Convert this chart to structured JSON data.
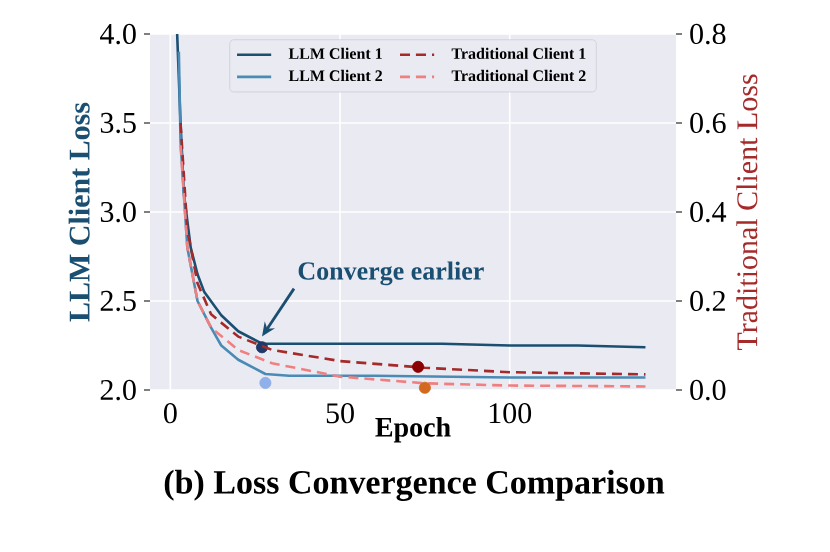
{
  "chart_data": {
    "type": "line",
    "title": "(b)  Loss Convergence Comparison",
    "xlabel": "Epoch",
    "ylabel": "LLM Client Loss",
    "y2label": "Traditional Client Loss",
    "xlim": [
      -6,
      149
    ],
    "xticks": [
      0,
      50,
      100
    ],
    "ylim": [
      2.0,
      4.0
    ],
    "yticks": [
      {
        "value": 2.0,
        "label": "2.0"
      },
      {
        "value": 2.5,
        "label": "2.5"
      },
      {
        "value": 3.0,
        "label": "3.0"
      },
      {
        "value": 3.5,
        "label": "3.5"
      },
      {
        "value": 4.0,
        "label": "4.0"
      }
    ],
    "y2lim": [
      0.0,
      0.8
    ],
    "y2ticks": [
      {
        "value": 0.0,
        "label": "0.0"
      },
      {
        "value": 0.2,
        "label": "0.2"
      },
      {
        "value": 0.4,
        "label": "0.4"
      },
      {
        "value": 0.6,
        "label": "0.6"
      },
      {
        "value": 0.8,
        "label": "0.8"
      }
    ],
    "grid": true,
    "legend": "top",
    "series": [
      {
        "name": "LLM Client 1",
        "color": "#1b4f72",
        "line_style": "solid",
        "x": [
          2,
          3,
          4,
          6,
          8,
          10,
          15,
          20,
          27,
          40,
          60,
          80,
          100,
          120,
          140
        ],
        "values": [
          4.0,
          3.5,
          3.1,
          2.8,
          2.65,
          2.55,
          2.42,
          2.33,
          2.26,
          2.26,
          2.26,
          2.26,
          2.25,
          2.25,
          2.24
        ]
      },
      {
        "name": "LLM Client 2",
        "color": "#4a8bb5",
        "line_style": "solid",
        "x": [
          2.5,
          3,
          5,
          8,
          12,
          15,
          20,
          25,
          28,
          35,
          60,
          100,
          140
        ],
        "values": [
          3.9,
          3.4,
          2.8,
          2.5,
          2.35,
          2.25,
          2.17,
          2.12,
          2.09,
          2.08,
          2.08,
          2.07,
          2.07
        ]
      },
      {
        "name": "Traditional Client 1",
        "color": "#a52a2a",
        "line_style": "dashed",
        "axis": "y2",
        "x": [
          3,
          5,
          8,
          12,
          20,
          30,
          50,
          75,
          100,
          140
        ],
        "values": [
          0.6,
          0.36,
          0.24,
          0.17,
          0.12,
          0.09,
          0.065,
          0.05,
          0.04,
          0.035
        ]
      },
      {
        "name": "Traditional Client 2",
        "color": "#f08080",
        "line_style": "dashed",
        "axis": "y2",
        "x": [
          3,
          5,
          8,
          12,
          20,
          30,
          50,
          75,
          100,
          140
        ],
        "values": [
          0.55,
          0.32,
          0.2,
          0.14,
          0.09,
          0.06,
          0.03,
          0.015,
          0.01,
          0.008
        ]
      },
      {
        "type": "scatter",
        "color": "#1f3a68",
        "x": [
          27
        ],
        "values": [
          2.24
        ]
      },
      {
        "type": "scatter",
        "color": "#8fb0e8",
        "x": [
          28
        ],
        "values": [
          2.04
        ]
      },
      {
        "type": "scatter",
        "color": "#8b0000",
        "axis": "y2",
        "x": [
          73
        ],
        "values": [
          0.052
        ]
      },
      {
        "type": "scatter",
        "color": "#d2691e",
        "axis": "y2",
        "x": [
          75
        ],
        "values": [
          0.005
        ]
      }
    ],
    "annotations": [
      {
        "text": "Converge earlier",
        "x": 27,
        "y": 2.3
      }
    ]
  }
}
